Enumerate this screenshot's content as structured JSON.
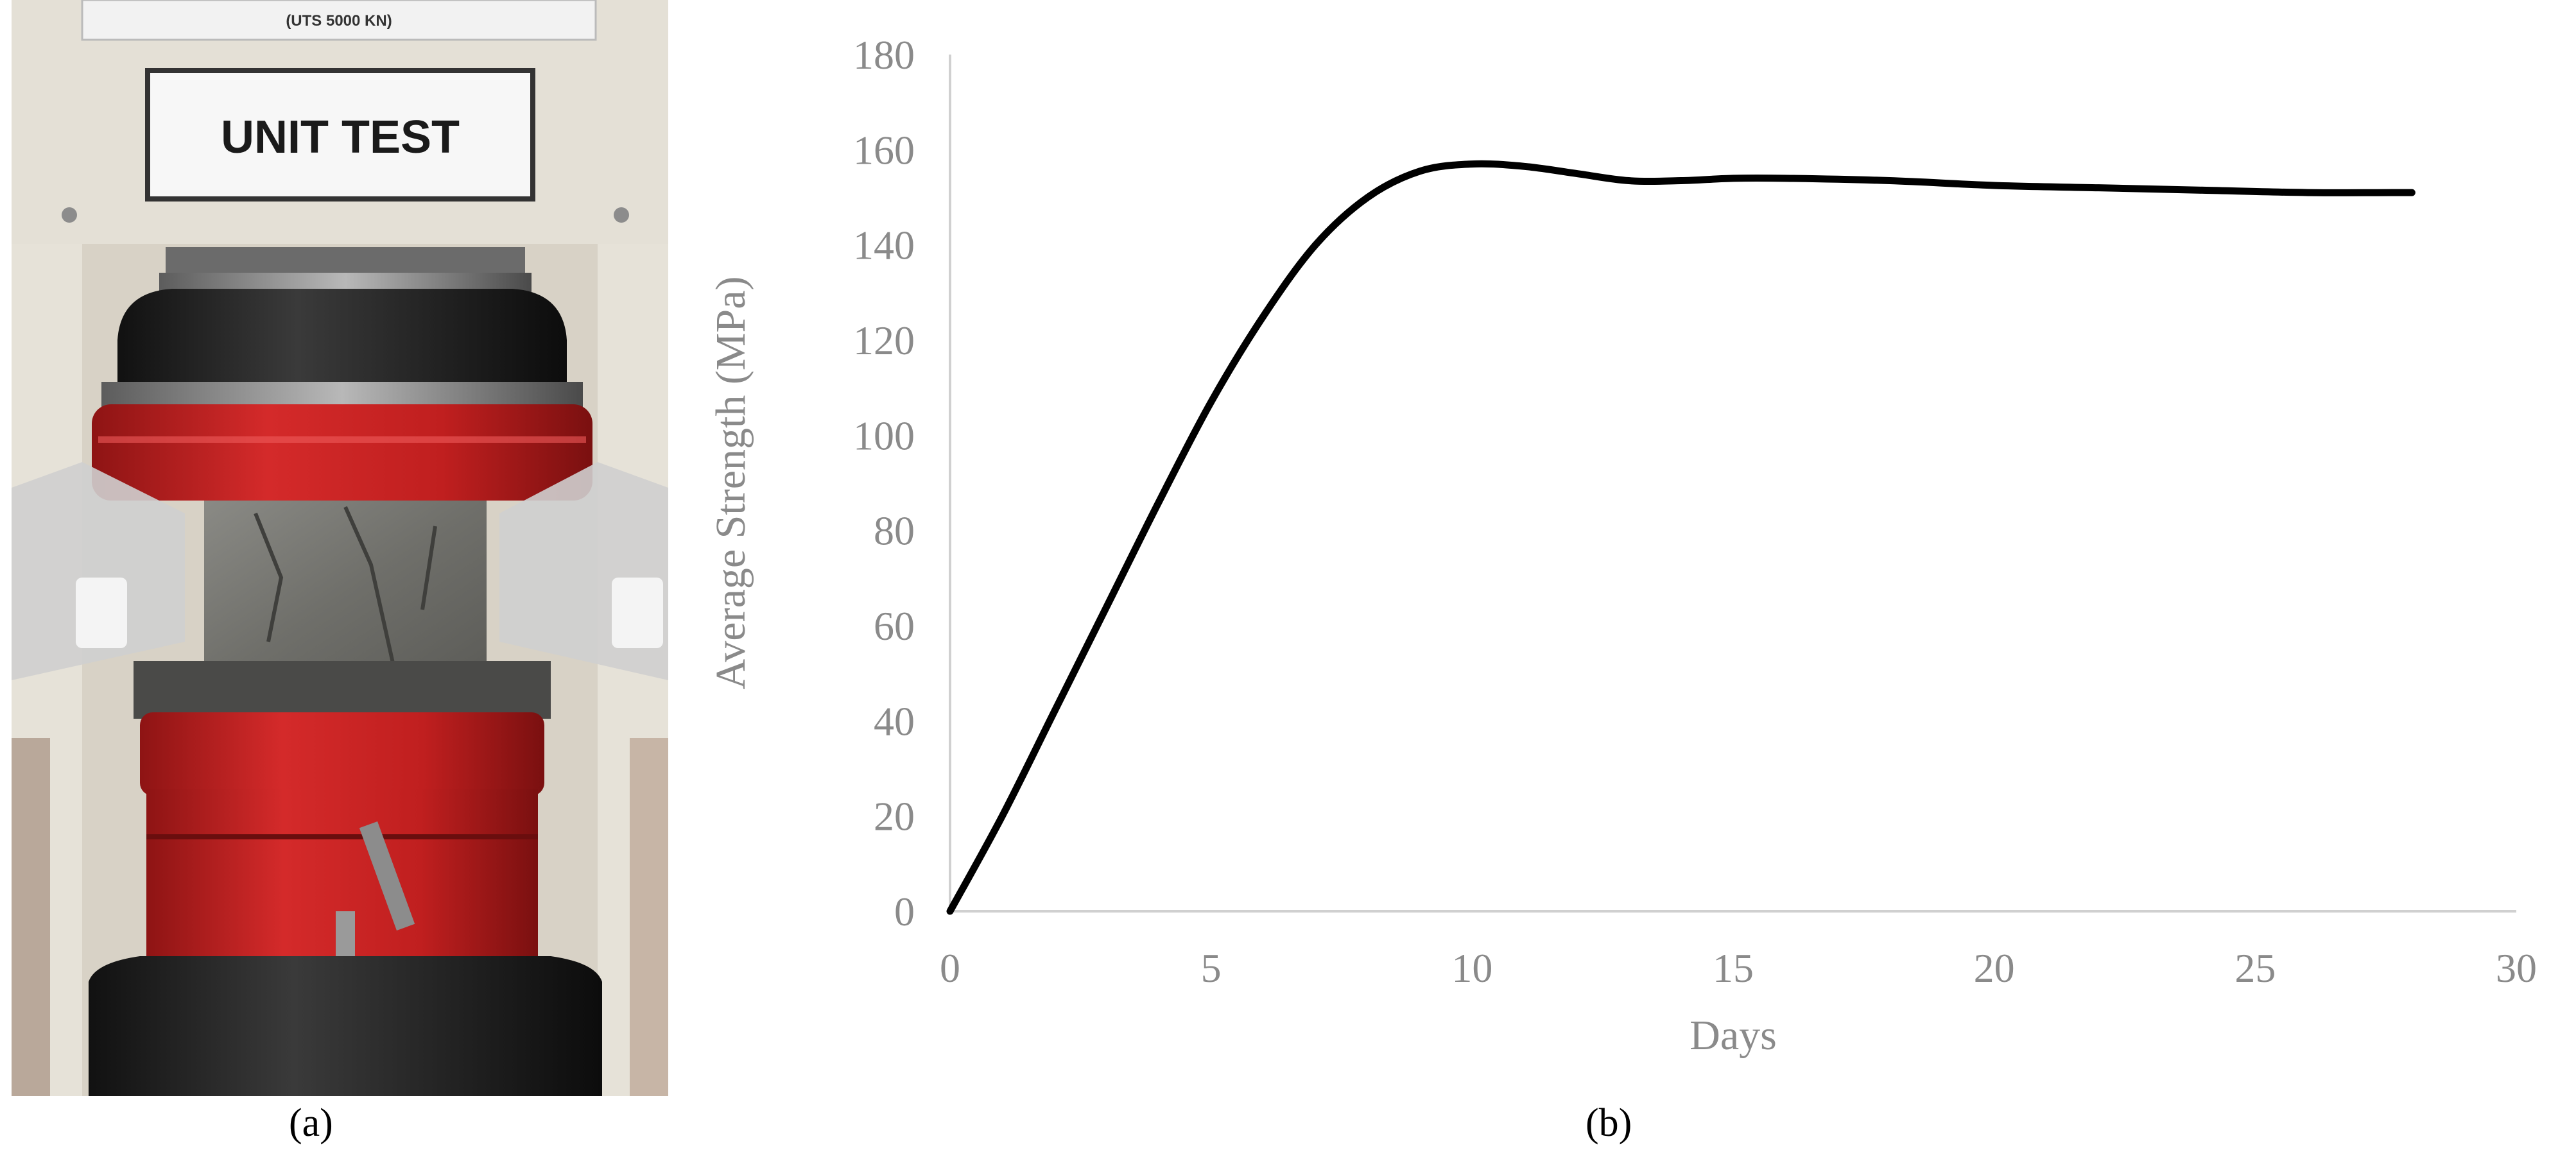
{
  "captions": {
    "a": "(a)",
    "b": "(b)"
  },
  "photo": {
    "sign_text": "UNIT TEST",
    "plate_text": "(UTS 5000 KN)"
  },
  "chart_data": {
    "type": "line",
    "title": "",
    "xlabel": "Days",
    "ylabel": "Average Strength (MPa)",
    "xlim": [
      0,
      30
    ],
    "ylim": [
      0,
      180
    ],
    "xticks": [
      0,
      5,
      10,
      15,
      20,
      25,
      30
    ],
    "yticks": [
      0,
      20,
      40,
      60,
      80,
      100,
      120,
      140,
      160,
      180
    ],
    "grid": false,
    "series": [
      {
        "x": [
          0,
          1,
          2,
          3,
          4,
          5,
          6,
          7,
          8,
          9,
          10,
          11,
          12,
          13,
          14,
          15,
          16,
          18,
          20,
          22,
          24,
          26,
          28
        ],
        "y": [
          0,
          20,
          42,
          64,
          86,
          107,
          125,
          140,
          150,
          155.5,
          157,
          156.5,
          155,
          153.5,
          153.5,
          154,
          154,
          153.5,
          152.5,
          152,
          151.5,
          151,
          151
        ],
        "color": "#000000"
      }
    ]
  }
}
